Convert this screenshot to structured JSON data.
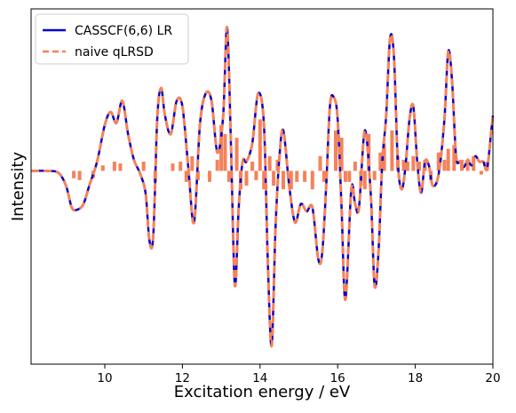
{
  "chart_data": {
    "type": "line",
    "title": "",
    "xlabel": "Excitation energy / eV",
    "ylabel": "Intensity",
    "xlim": [
      8.1,
      20.0
    ],
    "ylim": [
      -1.05,
      0.88
    ],
    "xticks": [
      10,
      12,
      14,
      16,
      18,
      20
    ],
    "yticks_visible": false,
    "grid": false,
    "legend_position": "top-left",
    "series": [
      {
        "name": "CASSCF(6,6) LR",
        "color": "#0000cc",
        "style": "solid",
        "x": [
          8.1,
          8.5,
          8.8,
          9.0,
          9.15,
          9.3,
          9.45,
          9.6,
          9.8,
          10.0,
          10.15,
          10.3,
          10.45,
          10.6,
          10.75,
          10.9,
          11.05,
          11.15,
          11.25,
          11.35,
          11.45,
          11.55,
          11.7,
          11.85,
          12.0,
          12.15,
          12.3,
          12.45,
          12.6,
          12.75,
          12.9,
          13.05,
          13.15,
          13.25,
          13.35,
          13.45,
          13.55,
          13.65,
          13.8,
          13.95,
          14.1,
          14.2,
          14.3,
          14.4,
          14.5,
          14.6,
          14.75,
          14.9,
          15.05,
          15.2,
          15.35,
          15.5,
          15.6,
          15.7,
          15.8,
          15.9,
          16.0,
          16.1,
          16.2,
          16.35,
          16.45,
          16.55,
          16.7,
          16.85,
          16.95,
          17.05,
          17.15,
          17.25,
          17.35,
          17.45,
          17.55,
          17.65,
          17.75,
          17.85,
          17.95,
          18.05,
          18.15,
          18.25,
          18.35,
          18.45,
          18.6,
          18.75,
          18.85,
          18.95,
          19.05,
          19.15,
          19.25,
          19.35,
          19.45,
          19.55,
          19.65,
          19.75,
          19.85,
          19.95,
          20.0
        ],
        "y": [
          0.0,
          0.0,
          -0.01,
          -0.08,
          -0.2,
          -0.21,
          -0.18,
          -0.08,
          0.05,
          0.25,
          0.32,
          0.26,
          0.38,
          0.2,
          0.06,
          -0.01,
          -0.12,
          -0.38,
          -0.35,
          0.28,
          0.45,
          0.3,
          0.2,
          0.38,
          0.35,
          0.02,
          -0.28,
          0.25,
          0.42,
          0.38,
          0.1,
          0.3,
          0.78,
          0.15,
          -0.62,
          -0.2,
          0.05,
          0.05,
          0.15,
          0.42,
          0.25,
          -0.5,
          -0.95,
          -0.3,
          0.08,
          0.22,
          -0.08,
          -0.28,
          -0.18,
          -0.22,
          -0.2,
          -0.48,
          -0.45,
          -0.1,
          0.35,
          0.4,
          0.28,
          -0.2,
          -0.7,
          -0.1,
          -0.18,
          -0.2,
          0.22,
          -0.12,
          -0.62,
          -0.45,
          0.05,
          0.3,
          0.72,
          0.62,
          0.05,
          -0.1,
          0.03,
          0.28,
          0.35,
          0.05,
          -0.12,
          0.05,
          0.03,
          -0.08,
          -0.02,
          0.28,
          0.65,
          0.48,
          0.08,
          0.05,
          0.02,
          0.06,
          0.03,
          0.08,
          0.05,
          0.05,
          0.01,
          0.2,
          0.3
        ]
      },
      {
        "name": "naive qLRSD",
        "color": "#f4825a",
        "style": "dashed",
        "x": [
          8.1,
          8.5,
          8.8,
          9.0,
          9.15,
          9.3,
          9.45,
          9.6,
          9.8,
          10.0,
          10.15,
          10.3,
          10.45,
          10.6,
          10.75,
          10.9,
          11.05,
          11.15,
          11.25,
          11.35,
          11.45,
          11.55,
          11.7,
          11.85,
          12.0,
          12.15,
          12.3,
          12.45,
          12.6,
          12.75,
          12.9,
          13.05,
          13.15,
          13.25,
          13.35,
          13.45,
          13.55,
          13.65,
          13.8,
          13.95,
          14.1,
          14.2,
          14.3,
          14.4,
          14.5,
          14.6,
          14.75,
          14.9,
          15.05,
          15.2,
          15.35,
          15.5,
          15.6,
          15.7,
          15.8,
          15.9,
          16.0,
          16.1,
          16.2,
          16.35,
          16.45,
          16.55,
          16.7,
          16.85,
          16.95,
          17.05,
          17.15,
          17.25,
          17.35,
          17.45,
          17.55,
          17.65,
          17.75,
          17.85,
          17.95,
          18.05,
          18.15,
          18.25,
          18.35,
          18.45,
          18.6,
          18.75,
          18.85,
          18.95,
          19.05,
          19.15,
          19.25,
          19.35,
          19.45,
          19.55,
          19.65,
          19.75,
          19.85,
          19.95,
          20.0
        ],
        "y": [
          0.0,
          0.0,
          -0.01,
          -0.08,
          -0.2,
          -0.21,
          -0.18,
          -0.08,
          0.05,
          0.25,
          0.32,
          0.26,
          0.38,
          0.2,
          0.06,
          -0.01,
          -0.12,
          -0.38,
          -0.35,
          0.28,
          0.45,
          0.3,
          0.2,
          0.38,
          0.35,
          0.02,
          -0.28,
          0.25,
          0.42,
          0.38,
          0.1,
          0.3,
          0.78,
          0.15,
          -0.62,
          -0.2,
          0.05,
          0.05,
          0.15,
          0.42,
          0.25,
          -0.5,
          -0.95,
          -0.3,
          0.08,
          0.22,
          -0.08,
          -0.28,
          -0.18,
          -0.22,
          -0.2,
          -0.48,
          -0.45,
          -0.1,
          0.35,
          0.4,
          0.28,
          -0.2,
          -0.7,
          -0.1,
          -0.18,
          -0.2,
          0.22,
          -0.12,
          -0.62,
          -0.45,
          0.05,
          0.3,
          0.72,
          0.62,
          0.05,
          -0.1,
          0.03,
          0.28,
          0.35,
          0.05,
          -0.12,
          0.05,
          0.03,
          -0.08,
          -0.02,
          0.28,
          0.65,
          0.48,
          0.08,
          0.05,
          0.02,
          0.06,
          0.03,
          0.08,
          0.05,
          0.05,
          0.01,
          0.2,
          0.3
        ]
      },
      {
        "name": "",
        "type": "stick",
        "color": "#f4825a",
        "x": [
          9.2,
          9.35,
          9.7,
          9.95,
          10.25,
          10.4,
          11.0,
          11.3,
          11.75,
          11.95,
          12.1,
          12.25,
          12.4,
          12.7,
          12.9,
          13.0,
          13.1,
          13.2,
          13.4,
          13.5,
          13.65,
          13.8,
          13.9,
          14.0,
          14.1,
          14.25,
          14.35,
          14.45,
          14.6,
          14.8,
          14.95,
          15.15,
          15.35,
          15.55,
          15.65,
          15.95,
          16.1,
          16.2,
          16.3,
          16.45,
          16.6,
          16.7,
          16.8,
          16.95,
          17.1,
          17.2,
          17.4,
          17.55,
          17.7,
          17.8,
          17.95,
          18.1,
          18.25,
          18.4,
          18.6,
          18.75,
          18.85,
          19.0,
          19.2,
          19.35,
          19.5,
          19.7,
          19.85
        ],
        "y": [
          -0.04,
          -0.05,
          -0.04,
          0.03,
          0.05,
          0.04,
          0.05,
          -0.06,
          0.04,
          0.05,
          -0.06,
          0.08,
          -0.05,
          -0.06,
          0.06,
          0.25,
          0.2,
          -0.06,
          0.18,
          -0.1,
          -0.08,
          0.05,
          -0.05,
          0.28,
          -0.1,
          0.08,
          -0.08,
          0.06,
          -0.1,
          -0.1,
          -0.06,
          -0.06,
          -0.1,
          0.08,
          -0.06,
          0.22,
          0.18,
          -0.06,
          -0.06,
          0.05,
          -0.08,
          -0.1,
          0.2,
          -0.05,
          0.1,
          0.15,
          0.22,
          0.08,
          0.06,
          0.05,
          0.08,
          0.05,
          0.06,
          -0.05,
          0.1,
          0.06,
          0.12,
          0.14,
          0.06,
          0.05,
          0.08,
          -0.02,
          0.05
        ]
      }
    ]
  }
}
